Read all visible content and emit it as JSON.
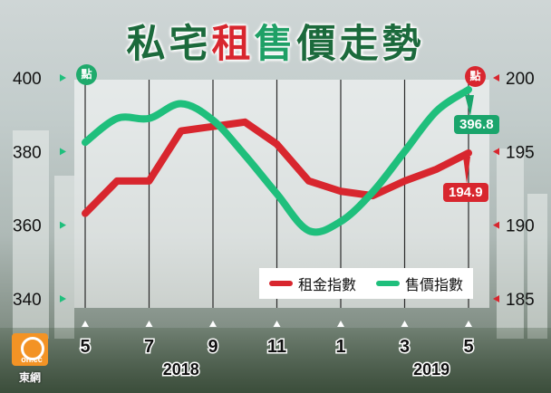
{
  "title": {
    "part1": "私宅",
    "part2": "租",
    "part3": "售",
    "part4": "價走勢"
  },
  "units": {
    "left": "點",
    "right": "點"
  },
  "end_labels": {
    "sale": "396.8",
    "rent": "194.9"
  },
  "legend": {
    "rent": "租金指數",
    "sale": "售價指數"
  },
  "logo": {
    "mark": "on.cc",
    "name": "東網"
  },
  "colors": {
    "rent": "#d8262e",
    "sale": "#1fbf7c",
    "title_dark": "#1c6a3c"
  },
  "chart_data": {
    "type": "line",
    "title": "私宅租售價走勢",
    "x": [
      "5",
      "6",
      "7",
      "8",
      "9",
      "10",
      "11",
      "12",
      "1",
      "2",
      "3",
      "4",
      "5"
    ],
    "x_tick_labels": [
      "5",
      "7",
      "9",
      "11",
      "1",
      "3",
      "5"
    ],
    "year_labels": [
      "2018",
      "2019"
    ],
    "left_axis": {
      "ticks": [
        "400",
        "380",
        "360",
        "340"
      ],
      "range": [
        340,
        400
      ]
    },
    "right_axis": {
      "ticks": [
        "200",
        "195",
        "190",
        "185"
      ],
      "range": [
        185,
        200
      ]
    },
    "grid": "vertical",
    "legend_position": "bottom-right",
    "series": [
      {
        "name": "租金指數",
        "axis": "right",
        "values": [
          190.8,
          193.0,
          193.0,
          196.4,
          196.7,
          197.0,
          195.5,
          193.0,
          192.3,
          192.0,
          193.0,
          193.8,
          194.9
        ]
      },
      {
        "name": "售價指數",
        "axis": "left",
        "values": [
          382.5,
          389.0,
          389.0,
          393.0,
          388.5,
          379.0,
          368.5,
          358.5,
          361.0,
          369.0,
          380.0,
          391.0,
          396.8
        ]
      }
    ]
  }
}
